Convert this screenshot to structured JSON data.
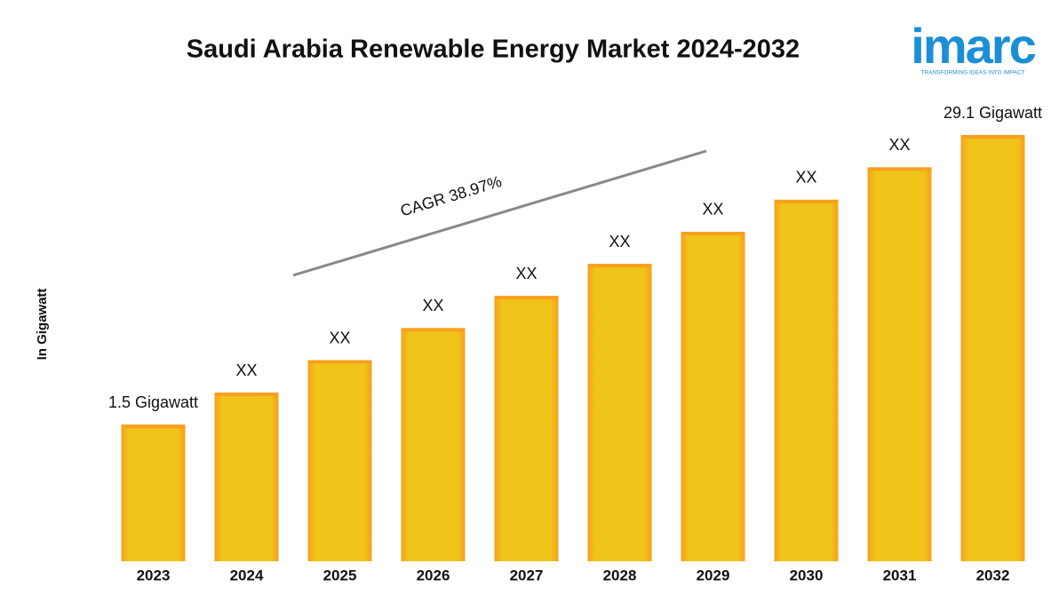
{
  "chart_data": {
    "type": "bar",
    "title": "Saudi Arabia Renewable Energy Market 2024-2032",
    "y_label": "In Gigawatt",
    "annotation": "CAGR 38.97%",
    "logo": "imarc",
    "logo_tagline": "TRANSFORMING IDEAS INTO IMPACT",
    "categories": [
      "2023",
      "2024",
      "2025",
      "2026",
      "2027",
      "2028",
      "2029",
      "2030",
      "2031",
      "2032"
    ],
    "values": [
      1.5,
      2.08,
      2.9,
      4.03,
      5.6,
      7.78,
      10.8,
      15.0,
      20.9,
      29.1
    ],
    "value_labels": [
      "1.5 Gigawatt",
      "XX",
      "XX",
      "XX",
      "XX",
      "XX",
      "XX",
      "XX",
      "XX",
      "29.1 Gigawatt"
    ],
    "color": "#f0c419",
    "edge_color": "#f7a01e",
    "log_scale": true,
    "ylim": [
      0.37,
      29.1
    ]
  }
}
